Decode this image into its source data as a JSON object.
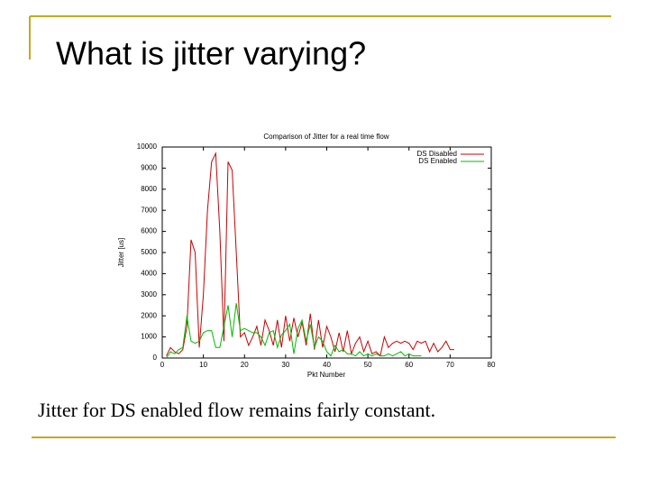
{
  "slide": {
    "title": "What is jitter varying?",
    "caption": "Jitter for DS enabled flow remains fairly constant."
  },
  "chart_data": {
    "type": "line",
    "title": "Comparison of Jitter for a real time flow",
    "x_label": "Pkt Number",
    "y_label": "Jitter [us]",
    "x": [
      1,
      2,
      3,
      4,
      5,
      6,
      7,
      8,
      9,
      10,
      11,
      12,
      13,
      14,
      15,
      16,
      17,
      18,
      19,
      20,
      21,
      22,
      23,
      24,
      25,
      26,
      27,
      28,
      29,
      30,
      31,
      32,
      33,
      34,
      35,
      36,
      37,
      38,
      39,
      40,
      41,
      42,
      43,
      44,
      45,
      46,
      47,
      48,
      49,
      50,
      51,
      52,
      53,
      54,
      55,
      56,
      57,
      58,
      59,
      60,
      61,
      62,
      63,
      64,
      65,
      66,
      67,
      68,
      69,
      70,
      71
    ],
    "series": [
      {
        "name": "DS Disabled",
        "color": "#cc0000",
        "values": [
          100,
          500,
          300,
          200,
          400,
          1500,
          5600,
          5000,
          500,
          3000,
          7000,
          9300,
          9700,
          6000,
          800,
          9300,
          8900,
          5000,
          1000,
          1200,
          600,
          1000,
          1500,
          600,
          1800,
          1300,
          600,
          1800,
          500,
          2000,
          800,
          1900,
          1000,
          1700,
          600,
          2100,
          400,
          1800,
          500,
          1500,
          1000,
          300,
          1200,
          300,
          1300,
          200,
          700,
          1000,
          300,
          800,
          200,
          300,
          100,
          1000,
          500,
          700,
          800,
          700,
          800,
          700,
          400,
          800,
          700,
          800,
          300,
          700,
          300,
          500,
          800,
          400,
          400
        ]
      },
      {
        "name": "DS Enabled",
        "color": "#00bb00",
        "values": [
          0,
          300,
          200,
          400,
          500,
          2000,
          800,
          700,
          800,
          1200,
          1300,
          1300,
          500,
          500,
          1500,
          2500,
          1000,
          2600,
          1300,
          1400,
          1300,
          1200,
          1200,
          1000,
          600,
          1200,
          1300,
          500,
          1100,
          1300,
          1600,
          200,
          1400,
          1800,
          800,
          1600,
          500,
          1000,
          800,
          300,
          100,
          600,
          300,
          400,
          200,
          200,
          100,
          300,
          100,
          200,
          100,
          200,
          100,
          100,
          200,
          100,
          200,
          300,
          100,
          200,
          100,
          100,
          100,
          null,
          null,
          null,
          null,
          null,
          null,
          null,
          null
        ]
      }
    ],
    "xlim": [
      0,
      80
    ],
    "xticks": [
      0,
      10,
      20,
      30,
      40,
      50,
      60,
      70,
      80
    ],
    "ylim": [
      0,
      10000
    ],
    "yticks": [
      0,
      1000,
      2000,
      3000,
      4000,
      5000,
      6000,
      7000,
      8000,
      9000,
      10000
    ],
    "legend": "upper right"
  }
}
